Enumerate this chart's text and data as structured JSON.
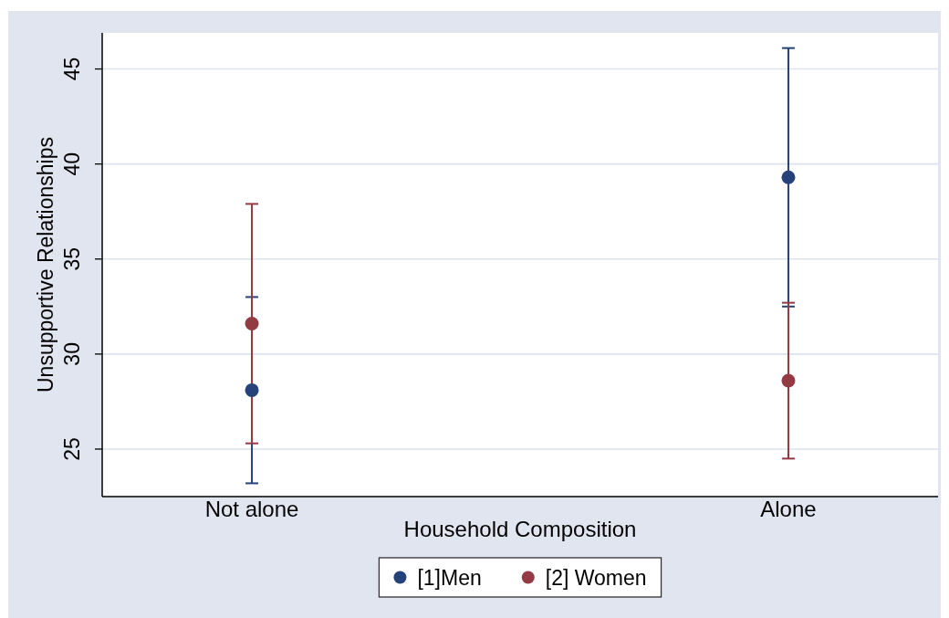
{
  "chart_data": {
    "type": "scatter",
    "xlabel": "Household Composition",
    "ylabel": "Unsupportive Relationships",
    "categories": [
      "Not alone",
      "Alone"
    ],
    "series": [
      {
        "name": "[1]Men",
        "color": "#26427a",
        "values": [
          28.1,
          39.3
        ],
        "errors": [
          4.9,
          6.8
        ]
      },
      {
        "name": "[2] Women",
        "color": "#943a42",
        "values": [
          31.6,
          28.6
        ],
        "errors": [
          6.3,
          4.1
        ]
      }
    ],
    "ylim": [
      22.5,
      46.9
    ],
    "yticks": [
      25,
      30,
      35,
      40,
      45
    ],
    "grid": "y",
    "legend": "bottom",
    "marker": "circle"
  }
}
